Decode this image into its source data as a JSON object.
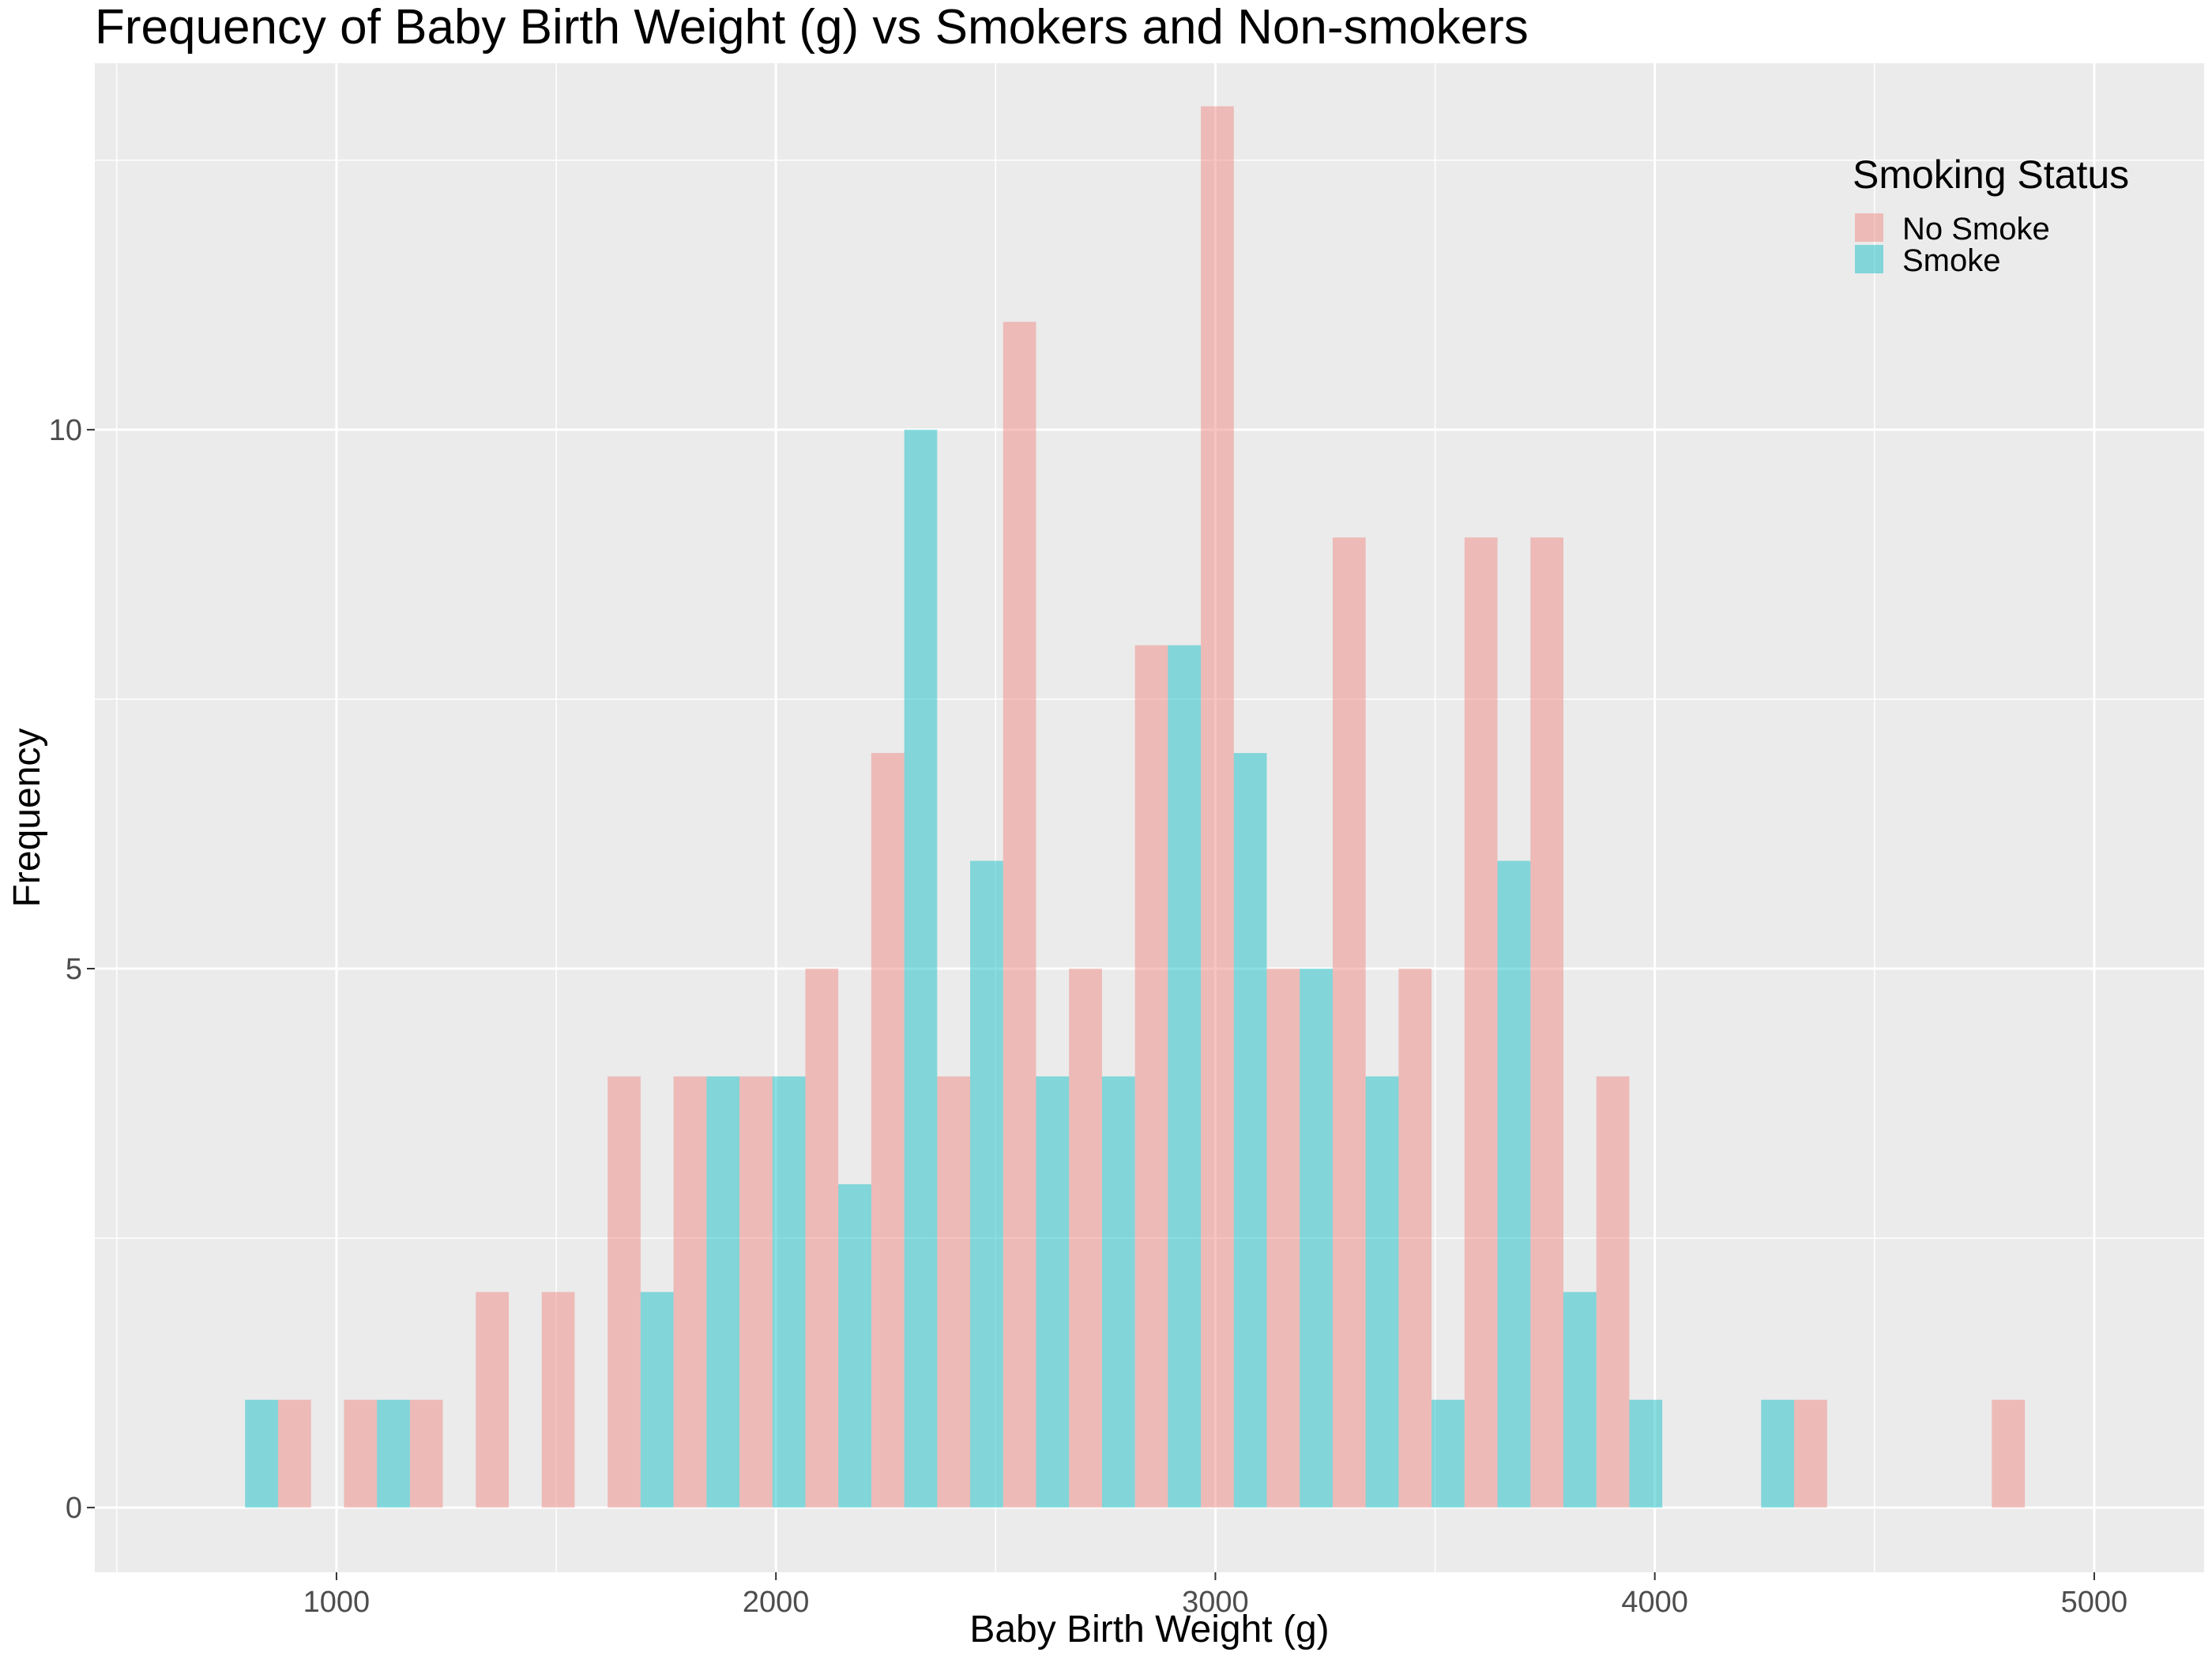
{
  "chart_data": {
    "type": "bar",
    "title": "Frequency of Baby Birth Weight (g) vs Smokers and Non-smokers",
    "xlabel": "Baby Birth Weight (g)",
    "ylabel": "Frequency",
    "xlim": [
      450,
      5250
    ],
    "ylim": [
      -0.6,
      13.4
    ],
    "bin_width": 150,
    "x_ticks": [
      1000,
      2000,
      3000,
      4000,
      5000
    ],
    "x_tick_labels": [
      "1000",
      "2000",
      "3000",
      "4000",
      "5000"
    ],
    "y_ticks": [
      0,
      5,
      10
    ],
    "y_tick_labels": [
      "0",
      "5",
      "10"
    ],
    "grid": true,
    "legend": {
      "title": "Smoking Status",
      "position": "top-right",
      "entries": [
        {
          "label": "No Smoke",
          "color": "#F08A84"
        },
        {
          "label": "Smoke",
          "color": "#19C0C7"
        }
      ]
    },
    "bin_centers": [
      792,
      942,
      1092,
      1242,
      1392,
      1542,
      1692,
      1842,
      1992,
      2142,
      2292,
      2442,
      2592,
      2742,
      2892,
      3042,
      3192,
      3342,
      3492,
      3642,
      3792,
      3942,
      4092,
      4242,
      4392,
      4542,
      4692,
      4842,
      4992
    ],
    "series": [
      {
        "name": "No Smoke",
        "color": "#F08A84",
        "values": [
          0,
          1,
          1,
          1,
          2,
          2,
          4,
          4,
          4,
          5,
          7,
          4,
          11,
          5,
          8,
          13,
          5,
          9,
          5,
          9,
          9,
          4,
          0,
          0,
          1,
          0,
          0,
          1,
          0
        ]
      },
      {
        "name": "Smoke",
        "color": "#19C0C7",
        "values": [
          1,
          0,
          1,
          0,
          0,
          0,
          2,
          4,
          4,
          3,
          10,
          6,
          4,
          4,
          8,
          7,
          5,
          4,
          1,
          6,
          2,
          1,
          0,
          1,
          0,
          0,
          0,
          0,
          0
        ]
      }
    ]
  }
}
